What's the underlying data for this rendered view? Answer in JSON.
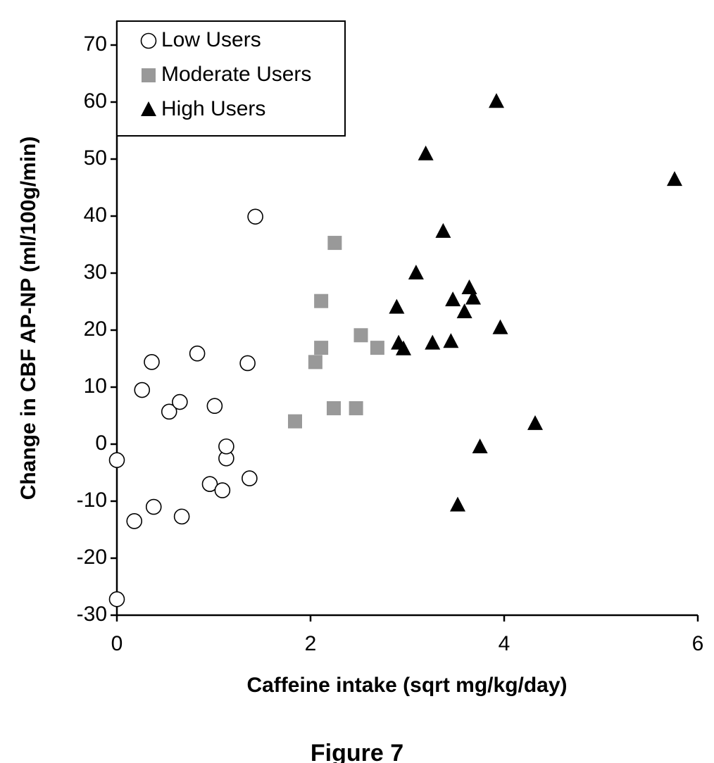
{
  "chart_data": {
    "type": "scatter",
    "title": "Figure 7",
    "x_label": "Caffeine intake (sqrt mg/kg/day)",
    "y_label": "Change in CBF AP-NP (ml/100g/min)",
    "xlim": [
      0,
      6
    ],
    "xticks": [
      0,
      2,
      4,
      6
    ],
    "ylim": [
      -30,
      70
    ],
    "yticks": [
      -30,
      -20,
      -10,
      0,
      10,
      20,
      30,
      40,
      50,
      60,
      70
    ],
    "grid": false,
    "legend": "upper left",
    "series": [
      {
        "name": "Low Users",
        "color": "#ffffff",
        "marker": "circle",
        "x": [
          0,
          0,
          0.18,
          0.26,
          0.36,
          0.38,
          0.54,
          0.65,
          0.67,
          0.83,
          0.96,
          1.01,
          1.09,
          1.13,
          1.13,
          1.35,
          1.37,
          1.43
        ],
        "values": [
          -2.8,
          -27.2,
          -13.5,
          9.5,
          14.4,
          -11,
          5.7,
          7.4,
          -12.7,
          15.9,
          -7,
          6.7,
          -8.1,
          -2.5,
          -0.4,
          14.2,
          -6,
          39.9
        ]
      },
      {
        "name": "Moderate Users",
        "color": "#999999",
        "marker": "square",
        "x": [
          1.84,
          2.05,
          2.11,
          2.11,
          2.24,
          2.25,
          2.47,
          2.52,
          2.69
        ],
        "values": [
          4,
          14.4,
          25.1,
          16.9,
          6.3,
          35.3,
          6.3,
          19.1,
          16.9
        ]
      },
      {
        "name": "High Users",
        "color": "#000000",
        "marker": "triangle",
        "x": [
          2.89,
          2.91,
          2.96,
          3.09,
          3.19,
          3.26,
          3.37,
          3.45,
          3.47,
          3.52,
          3.59,
          3.64,
          3.68,
          3.75,
          3.92,
          3.96,
          4.32,
          5.76
        ],
        "values": [
          24,
          17.7,
          16.7,
          30,
          50.9,
          17.7,
          37.3,
          18,
          25.3,
          -10.7,
          23.2,
          27.4,
          25.6,
          -0.5,
          60.1,
          20.4,
          3.6,
          46.4
        ]
      }
    ]
  }
}
